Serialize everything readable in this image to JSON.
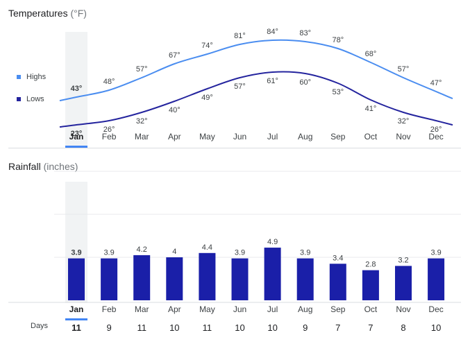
{
  "temperatures": {
    "title": "Temperatures",
    "unit": "(°F)",
    "legend": {
      "highs": "Highs",
      "lows": "Lows"
    }
  },
  "rainfall": {
    "title": "Rainfall",
    "unit": "(inches)",
    "days_label": "Days"
  },
  "colors": {
    "highs": "#4a8df0",
    "lows": "#24249e",
    "bar": "#1a1fa8",
    "selected_band": "#f1f3f4",
    "selected_underline": "#4285f4",
    "grid": "#e8eaed",
    "text": "#3c4043"
  },
  "selected_index": 0,
  "chart_data": [
    {
      "type": "line",
      "title": "Temperatures (°F)",
      "categories": [
        "Jan",
        "Feb",
        "Mar",
        "Apr",
        "May",
        "Jun",
        "Jul",
        "Aug",
        "Sep",
        "Oct",
        "Nov",
        "Dec"
      ],
      "series": [
        {
          "name": "Highs",
          "values": [
            43,
            48,
            57,
            67,
            74,
            81,
            84,
            83,
            78,
            68,
            57,
            47
          ]
        },
        {
          "name": "Lows",
          "values": [
            23,
            26,
            32,
            40,
            49,
            57,
            61,
            60,
            53,
            41,
            32,
            26
          ]
        }
      ],
      "value_suffix": "°",
      "ylim": [
        20,
        87
      ]
    },
    {
      "type": "bar",
      "title": "Rainfall (inches)",
      "categories": [
        "Jan",
        "Feb",
        "Mar",
        "Apr",
        "May",
        "Jun",
        "Jul",
        "Aug",
        "Sep",
        "Oct",
        "Nov",
        "Dec"
      ],
      "values": [
        3.9,
        3.9,
        4.2,
        4,
        4.4,
        3.9,
        4.9,
        3.9,
        3.4,
        2.8,
        3.2,
        3.9
      ],
      "rainy_days": [
        11,
        9,
        11,
        10,
        11,
        10,
        10,
        9,
        7,
        7,
        8,
        10
      ],
      "ylim": [
        0,
        12
      ]
    }
  ]
}
